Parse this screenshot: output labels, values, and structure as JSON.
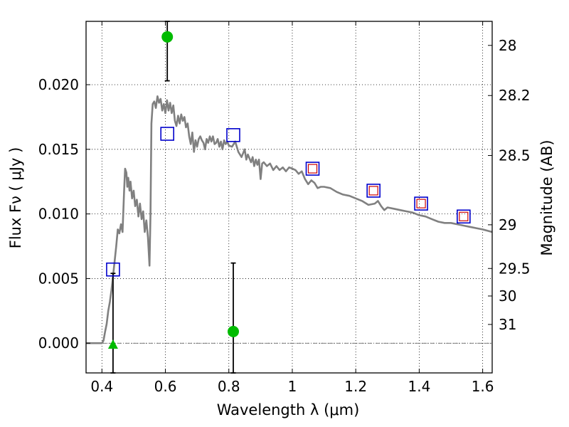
{
  "chart_data": {
    "type": "scatter",
    "xlabel": "Wavelength  λ (μm)",
    "ylabel_left": "Flux  Fν  ( μJy )",
    "ylabel_right": "Magnitude (AB)",
    "xlim": [
      0.35,
      1.63
    ],
    "ylim": [
      -0.0023,
      0.0249
    ],
    "grid": true,
    "x_ticks": [
      {
        "value": 0.4,
        "label": "0.4"
      },
      {
        "value": 0.6,
        "label": "0.6"
      },
      {
        "value": 0.8,
        "label": "0.8"
      },
      {
        "value": 1.0,
        "label": "1"
      },
      {
        "value": 1.2,
        "label": "1.2"
      },
      {
        "value": 1.4,
        "label": "1.4"
      },
      {
        "value": 1.6,
        "label": "1.6"
      }
    ],
    "y_ticks": [
      {
        "value": 0.0,
        "label": "0.000"
      },
      {
        "value": 0.005,
        "label": "0.005"
      },
      {
        "value": 0.01,
        "label": "0.010"
      },
      {
        "value": 0.015,
        "label": "0.015"
      },
      {
        "value": 0.02,
        "label": "0.020"
      }
    ],
    "mag_ticks": [
      {
        "flux": 0.02304,
        "label": "28"
      },
      {
        "flux": 0.01916,
        "label": "28.2"
      },
      {
        "flux": 0.01452,
        "label": "28.5"
      },
      {
        "flux": 0.00916,
        "label": "29"
      },
      {
        "flux": 0.00578,
        "label": "29.5"
      },
      {
        "flux": 0.00365,
        "label": "30"
      },
      {
        "flux": 0.00145,
        "label": "31"
      }
    ],
    "model_spectrum": {
      "color": "#808080",
      "points": [
        [
          0.35,
          0.0
        ],
        [
          0.4,
          0.0
        ],
        [
          0.405,
          0.0002
        ],
        [
          0.41,
          0.0009
        ],
        [
          0.415,
          0.0015
        ],
        [
          0.42,
          0.0025
        ],
        [
          0.425,
          0.0032
        ],
        [
          0.43,
          0.0041
        ],
        [
          0.435,
          0.0052
        ],
        [
          0.44,
          0.0063
        ],
        [
          0.445,
          0.0075
        ],
        [
          0.45,
          0.0088
        ],
        [
          0.455,
          0.0085
        ],
        [
          0.46,
          0.0092
        ],
        [
          0.465,
          0.0086
        ],
        [
          0.47,
          0.0118
        ],
        [
          0.473,
          0.0135
        ],
        [
          0.477,
          0.0132
        ],
        [
          0.48,
          0.0121
        ],
        [
          0.483,
          0.0128
        ],
        [
          0.487,
          0.0118
        ],
        [
          0.49,
          0.0125
        ],
        [
          0.495,
          0.0112
        ],
        [
          0.5,
          0.0118
        ],
        [
          0.505,
          0.0106
        ],
        [
          0.51,
          0.0111
        ],
        [
          0.515,
          0.0098
        ],
        [
          0.52,
          0.0108
        ],
        [
          0.525,
          0.0096
        ],
        [
          0.53,
          0.0102
        ],
        [
          0.535,
          0.0086
        ],
        [
          0.54,
          0.0095
        ],
        [
          0.545,
          0.0082
        ],
        [
          0.55,
          0.006
        ],
        [
          0.553,
          0.01
        ],
        [
          0.556,
          0.017
        ],
        [
          0.56,
          0.0185
        ],
        [
          0.565,
          0.0187
        ],
        [
          0.57,
          0.0182
        ],
        [
          0.575,
          0.0191
        ],
        [
          0.58,
          0.0186
        ],
        [
          0.585,
          0.0189
        ],
        [
          0.59,
          0.018
        ],
        [
          0.595,
          0.0185
        ],
        [
          0.6,
          0.0178
        ],
        [
          0.605,
          0.0188
        ],
        [
          0.61,
          0.018
        ],
        [
          0.615,
          0.0186
        ],
        [
          0.62,
          0.0178
        ],
        [
          0.625,
          0.0184
        ],
        [
          0.63,
          0.0172
        ],
        [
          0.635,
          0.0168
        ],
        [
          0.64,
          0.0176
        ],
        [
          0.645,
          0.017
        ],
        [
          0.65,
          0.0177
        ],
        [
          0.655,
          0.0172
        ],
        [
          0.66,
          0.0175
        ],
        [
          0.665,
          0.0167
        ],
        [
          0.67,
          0.017
        ],
        [
          0.675,
          0.016
        ],
        [
          0.68,
          0.0154
        ],
        [
          0.685,
          0.0163
        ],
        [
          0.69,
          0.0148
        ],
        [
          0.695,
          0.0157
        ],
        [
          0.7,
          0.0152
        ],
        [
          0.705,
          0.0158
        ],
        [
          0.71,
          0.016
        ],
        [
          0.715,
          0.0157
        ],
        [
          0.72,
          0.0155
        ],
        [
          0.725,
          0.015
        ],
        [
          0.73,
          0.0158
        ],
        [
          0.735,
          0.0155
        ],
        [
          0.74,
          0.016
        ],
        [
          0.745,
          0.0156
        ],
        [
          0.75,
          0.016
        ],
        [
          0.755,
          0.0154
        ],
        [
          0.76,
          0.0155
        ],
        [
          0.765,
          0.0158
        ],
        [
          0.77,
          0.0152
        ],
        [
          0.775,
          0.0156
        ],
        [
          0.78,
          0.015
        ],
        [
          0.785,
          0.0157
        ],
        [
          0.79,
          0.0154
        ],
        [
          0.795,
          0.0156
        ],
        [
          0.8,
          0.0153
        ],
        [
          0.81,
          0.0152
        ],
        [
          0.82,
          0.0156
        ],
        [
          0.83,
          0.0148
        ],
        [
          0.84,
          0.0144
        ],
        [
          0.85,
          0.015
        ],
        [
          0.855,
          0.0142
        ],
        [
          0.86,
          0.0146
        ],
        [
          0.87,
          0.014
        ],
        [
          0.875,
          0.0144
        ],
        [
          0.88,
          0.0137
        ],
        [
          0.885,
          0.0142
        ],
        [
          0.89,
          0.0138
        ],
        [
          0.895,
          0.0142
        ],
        [
          0.9,
          0.0127
        ],
        [
          0.905,
          0.0139
        ],
        [
          0.91,
          0.014
        ],
        [
          0.92,
          0.0137
        ],
        [
          0.93,
          0.0139
        ],
        [
          0.94,
          0.0134
        ],
        [
          0.95,
          0.0137
        ],
        [
          0.96,
          0.0134
        ],
        [
          0.97,
          0.0136
        ],
        [
          0.98,
          0.0133
        ],
        [
          0.99,
          0.0136
        ],
        [
          1.0,
          0.0135
        ],
        [
          1.01,
          0.0134
        ],
        [
          1.02,
          0.0131
        ],
        [
          1.03,
          0.0133
        ],
        [
          1.04,
          0.0127
        ],
        [
          1.05,
          0.0123
        ],
        [
          1.06,
          0.0126
        ],
        [
          1.07,
          0.0124
        ],
        [
          1.08,
          0.012
        ],
        [
          1.09,
          0.0121
        ],
        [
          1.1,
          0.0121
        ],
        [
          1.12,
          0.012
        ],
        [
          1.14,
          0.0117
        ],
        [
          1.16,
          0.0115
        ],
        [
          1.18,
          0.0114
        ],
        [
          1.2,
          0.0112
        ],
        [
          1.22,
          0.011
        ],
        [
          1.24,
          0.0107
        ],
        [
          1.26,
          0.0108
        ],
        [
          1.27,
          0.011
        ],
        [
          1.28,
          0.0106
        ],
        [
          1.29,
          0.0103
        ],
        [
          1.3,
          0.0105
        ],
        [
          1.32,
          0.0104
        ],
        [
          1.34,
          0.0103
        ],
        [
          1.36,
          0.0102
        ],
        [
          1.38,
          0.0101
        ],
        [
          1.4,
          0.0099
        ],
        [
          1.42,
          0.0098
        ],
        [
          1.44,
          0.0096
        ],
        [
          1.46,
          0.0094
        ],
        [
          1.48,
          0.0093
        ],
        [
          1.5,
          0.0093
        ],
        [
          1.52,
          0.0092
        ],
        [
          1.54,
          0.0091
        ],
        [
          1.56,
          0.009
        ],
        [
          1.58,
          0.0089
        ],
        [
          1.6,
          0.0088
        ],
        [
          1.63,
          0.0086
        ]
      ]
    },
    "model_photometry": {
      "edge_color": "#0000cc",
      "points": [
        {
          "x": 0.435,
          "y": 0.0057
        },
        {
          "x": 0.606,
          "y": 0.0162
        },
        {
          "x": 0.814,
          "y": 0.0161
        },
        {
          "x": 1.064,
          "y": 0.0135
        },
        {
          "x": 1.256,
          "y": 0.0118
        },
        {
          "x": 1.406,
          "y": 0.0108
        },
        {
          "x": 1.54,
          "y": 0.0098
        }
      ]
    },
    "red_squares": {
      "edge_color": "#cc0000",
      "points": [
        {
          "x": 1.064,
          "y": 0.0135
        },
        {
          "x": 1.256,
          "y": 0.0118
        },
        {
          "x": 1.406,
          "y": 0.0108
        },
        {
          "x": 1.54,
          "y": 0.0098
        }
      ]
    },
    "observed_detections": {
      "color": "#00bb00",
      "points": [
        {
          "x": 0.606,
          "y": 0.0237,
          "err_low": 0.0203,
          "err_high": 0.0249
        },
        {
          "x": 0.814,
          "y": 0.0009,
          "err_low": -0.0023,
          "err_high": 0.0062
        }
      ]
    },
    "upper_limits": {
      "color": "#00bb00",
      "points": [
        {
          "x": 0.435,
          "y": -0.0001,
          "err_low": -0.0023,
          "err_high": 0.0054
        }
      ]
    },
    "zero_line": {
      "y": 0.0
    }
  }
}
